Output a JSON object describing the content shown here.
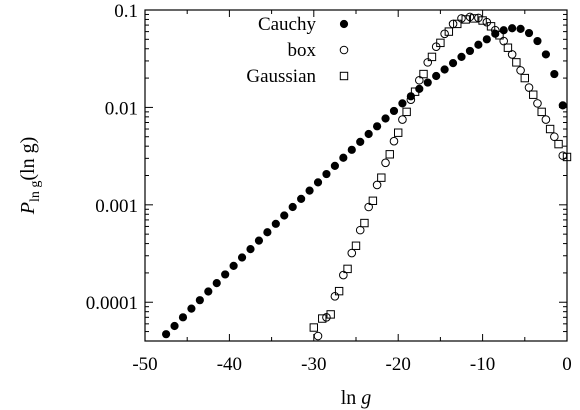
{
  "chart_data": {
    "type": "scatter",
    "xlabel": "ln g",
    "ylabel": "P_{ln g}(ln g)",
    "ylabel_main": "P",
    "ylabel_sub": "ln g",
    "ylabel_tail": "(ln g)",
    "xlim": [
      -50,
      0
    ],
    "ylim": [
      4e-05,
      0.1
    ],
    "yscale": "log",
    "grid": false,
    "legend_position": "top-center",
    "xticks": [
      -50,
      -40,
      -30,
      -20,
      -10,
      0
    ],
    "xtick_labels": [
      "-50",
      "-40",
      "-30",
      "-20",
      "-10",
      "0"
    ],
    "yticks": [
      0.0001,
      0.001,
      0.01,
      0.1
    ],
    "ytick_labels": [
      "0.0001",
      "0.001",
      "0.01",
      "0.1"
    ],
    "series": [
      {
        "name": "Cauchy",
        "marker": "filled-circle",
        "x": [
          -47.5,
          -46.5,
          -45.5,
          -44.5,
          -43.5,
          -42.5,
          -41.5,
          -40.5,
          -39.5,
          -38.5,
          -37.5,
          -36.5,
          -35.5,
          -34.5,
          -33.5,
          -32.5,
          -31.5,
          -30.5,
          -29.5,
          -28.5,
          -27.5,
          -26.5,
          -25.5,
          -24.5,
          -23.5,
          -22.5,
          -21.5,
          -20.5,
          -19.5,
          -18.5,
          -17.5,
          -16.5,
          -15.5,
          -14.5,
          -13.5,
          -12.5,
          -11.5,
          -10.5,
          -9.5,
          -8.5,
          -7.5,
          -6.5,
          -5.5,
          -4.5,
          -3.5,
          -2.5,
          -1.5,
          -0.5
        ],
        "y": [
          4.7e-05,
          5.7e-05,
          7e-05,
          8.6e-05,
          0.000105,
          0.000129,
          0.000157,
          0.000193,
          0.000236,
          0.000288,
          0.000351,
          0.000429,
          0.000523,
          0.000638,
          0.000777,
          0.00095,
          0.00115,
          0.0014,
          0.0017,
          0.00207,
          0.00251,
          0.00304,
          0.00367,
          0.00443,
          0.00533,
          0.0064,
          0.0077,
          0.0092,
          0.011,
          0.013,
          0.0155,
          0.018,
          0.021,
          0.0245,
          0.0285,
          0.033,
          0.038,
          0.044,
          0.05,
          0.057,
          0.062,
          0.065,
          0.064,
          0.058,
          0.048,
          0.035,
          0.022,
          0.0105
        ]
      },
      {
        "name": "box",
        "marker": "open-circle",
        "x": [
          -29.5,
          -28.5,
          -27.5,
          -26.5,
          -25.5,
          -24.5,
          -23.5,
          -22.5,
          -21.5,
          -20.5,
          -19.5,
          -18.5,
          -17.5,
          -16.5,
          -15.5,
          -14.5,
          -13.5,
          -12.5,
          -11.5,
          -10.5,
          -9.5,
          -8.5,
          -7.5,
          -6.5,
          -5.5,
          -4.5,
          -3.5,
          -2.5,
          -1.5,
          -0.5
        ],
        "y": [
          4.5e-05,
          7e-05,
          0.000115,
          0.00019,
          0.00032,
          0.00055,
          0.00095,
          0.0016,
          0.0027,
          0.0045,
          0.0075,
          0.012,
          0.019,
          0.029,
          0.042,
          0.057,
          0.072,
          0.082,
          0.085,
          0.083,
          0.075,
          0.062,
          0.048,
          0.035,
          0.024,
          0.016,
          0.011,
          0.0075,
          0.005,
          0.0032
        ]
      },
      {
        "name": "Gaussian",
        "marker": "open-square",
        "x": [
          -30,
          -29,
          -28,
          -27,
          -26,
          -25,
          -24,
          -23,
          -22,
          -21,
          -20,
          -19,
          -18,
          -17,
          -16,
          -15,
          -14,
          -13,
          -12,
          -11,
          -10,
          -9,
          -8,
          -7,
          -6,
          -5,
          -4,
          -3,
          -2,
          -1,
          0
        ],
        "y": [
          5.5e-05,
          6.8e-05,
          7.5e-05,
          0.00013,
          0.00022,
          0.00038,
          0.00065,
          0.0011,
          0.0019,
          0.0033,
          0.0055,
          0.009,
          0.0145,
          0.022,
          0.033,
          0.046,
          0.06,
          0.072,
          0.08,
          0.082,
          0.078,
          0.068,
          0.055,
          0.041,
          0.029,
          0.02,
          0.0135,
          0.009,
          0.006,
          0.0042,
          0.0031
        ]
      }
    ]
  }
}
